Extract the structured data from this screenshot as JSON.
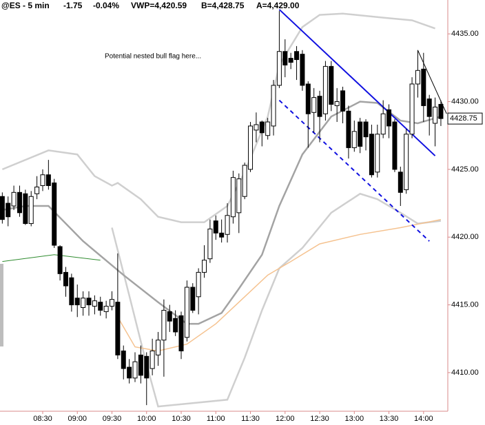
{
  "chart_data": {
    "type": "candlestick",
    "title": "@ES - 5 min",
    "change": "-1.75",
    "change_pct": "-0.04%",
    "change_color": "#e00000",
    "vwap": "VWP=4,420.59",
    "bid": "B=4,428.75",
    "ask": "A=4,429.00",
    "annotation": "Potential nested bull flag here...",
    "x": [
      "07:55",
      "08:00",
      "08:05",
      "08:10",
      "08:15",
      "08:20",
      "08:25",
      "08:30",
      "08:35",
      "08:40",
      "08:45",
      "08:50",
      "08:55",
      "09:00",
      "09:05",
      "09:10",
      "09:15",
      "09:20",
      "09:25",
      "09:30",
      "09:35",
      "09:40",
      "09:45",
      "09:50",
      "09:55",
      "10:00",
      "10:05",
      "10:10",
      "10:15",
      "10:20",
      "10:25",
      "10:30",
      "10:35",
      "10:40",
      "10:45",
      "10:50",
      "10:55",
      "11:00",
      "11:05",
      "11:10",
      "11:15",
      "11:20",
      "11:25",
      "11:30",
      "11:35",
      "11:40",
      "11:45",
      "11:50",
      "11:55",
      "12:00",
      "12:05",
      "12:10",
      "12:15",
      "12:20",
      "12:25",
      "12:30",
      "12:35",
      "12:40",
      "12:45",
      "12:50",
      "12:55",
      "13:00",
      "13:05",
      "13:10",
      "13:15",
      "13:20",
      "13:25",
      "13:30",
      "13:35",
      "13:40",
      "13:45",
      "13:50",
      "13:55",
      "14:00",
      "14:05",
      "14:10",
      "14:15"
    ],
    "open": [
      4423.0,
      4422.5,
      4422.3,
      4423.3,
      4423.2,
      4421.0,
      4423.2,
      4423.8,
      4424.6,
      4424.0,
      4419.3,
      4417.4,
      4417.0,
      4415.5,
      4414.8,
      4415.5,
      4414.9,
      4415.2,
      4414.5,
      4414.9,
      4415.2,
      4411.6,
      4410.4,
      4409.6,
      4411.3,
      4411.2,
      4410.3,
      4411.3,
      4412.4,
      4414.5,
      4414.0,
      4414.2,
      4412.6,
      4416.3,
      4415.6,
      4417.4,
      4418.4,
      4421.2,
      4420.3,
      4420.2,
      4421.5,
      4421.8,
      4423.0,
      4425.0,
      4427.9,
      4428.5,
      4427.5,
      4428.2,
      4431.2,
      4433.7,
      4433.2,
      4433.7,
      4433.5,
      4431.3,
      4429.2,
      4430.4,
      4429.1,
      4432.6,
      4429.7,
      4430.8,
      4429.3,
      4426.6,
      4428.5,
      4428.5,
      4427.6,
      4424.8,
      4427.6,
      4429.4,
      4428.5,
      4424.8,
      4423.5,
      4427.6,
      4431.3,
      4432.4,
      4430.2,
      4428.4,
      4429.8
    ],
    "high": [
      4423.3,
      4423.0,
      4423.8,
      4423.8,
      4423.5,
      4423.4,
      4424.5,
      4425.0,
      4425.7,
      4424.3,
      4419.4,
      4417.8,
      4417.3,
      4416.5,
      4416.0,
      4416.0,
      4415.7,
      4415.6,
      4415.3,
      4416.0,
      4418.8,
      4412.0,
      4411.0,
      4411.5,
      4412.0,
      4411.5,
      4412.5,
      4413.0,
      4415.4,
      4415.0,
      4414.6,
      4414.5,
      4416.8,
      4416.6,
      4417.7,
      4419.4,
      4421.3,
      4421.6,
      4421.3,
      4422.5,
      4424.9,
      4424.7,
      4425.5,
      4428.5,
      4429.2,
      4428.6,
      4428.8,
      4431.6,
      4436.7,
      4434.6,
      4433.6,
      4434.1,
      4433.8,
      4431.5,
      4431.0,
      4430.8,
      4433.0,
      4433.0,
      4431.0,
      4431.1,
      4429.7,
      4428.6,
      4428.8,
      4428.7,
      4428.3,
      4428.3,
      4430.1,
      4429.8,
      4428.7,
      4425.2,
      4428.0,
      4431.8,
      4433.8,
      4433.6,
      4430.5,
      4430.3,
      4430.1
    ],
    "low": [
      4421.0,
      4420.8,
      4422.0,
      4421.5,
      4420.9,
      4420.8,
      4422.8,
      4423.4,
      4423.5,
      4419.2,
      4416.8,
      4415.6,
      4414.5,
      4414.1,
      4414.2,
      4414.2,
      4414.3,
      4414.2,
      4414.0,
      4414.6,
      4411.0,
      4409.5,
      4409.2,
      4409.3,
      4409.2,
      4407.6,
      4409.8,
      4410.5,
      4409.7,
      4413.0,
      4412.7,
      4411.0,
      4412.3,
      4414.4,
      4414.3,
      4417.0,
      4418.1,
      4419.8,
      4419.6,
      4419.6,
      4421.0,
      4420.3,
      4422.8,
      4424.8,
      4427.0,
      4426.7,
      4427.2,
      4427.5,
      4431.0,
      4431.8,
      4432.4,
      4431.6,
      4430.8,
      4426.6,
      4427.7,
      4427.0,
      4428.6,
      4429.3,
      4428.5,
      4428.4,
      4425.8,
      4426.3,
      4426.2,
      4426.4,
      4424.4,
      4424.4,
      4427.3,
      4427.3,
      4424.8,
      4422.3,
      4423.2,
      4427.3,
      4430.3,
      4428.5,
      4427.5,
      4426.7,
      4428.2
    ],
    "close": [
      4421.3,
      4421.5,
      4423.3,
      4421.8,
      4421.0,
      4423.0,
      4423.7,
      4424.6,
      4423.8,
      4419.4,
      4417.3,
      4416.4,
      4415.0,
      4415.0,
      4415.5,
      4415.0,
      4415.3,
      4414.6,
      4414.9,
      4415.4,
      4411.3,
      4410.3,
      4409.6,
      4410.8,
      4409.8,
      4409.6,
      4411.6,
      4412.4,
      4414.6,
      4413.8,
      4413.0,
      4411.6,
      4416.3,
      4414.6,
      4417.4,
      4418.3,
      4420.6,
      4420.3,
      4420.0,
      4421.6,
      4424.4,
      4424.3,
      4425.3,
      4428.2,
      4428.3,
      4427.7,
      4428.5,
      4431.2,
      4433.7,
      4432.7,
      4432.9,
      4433.1,
      4431.2,
      4429.1,
      4430.3,
      4428.9,
      4432.6,
      4429.8,
      4430.0,
      4429.3,
      4426.6,
      4427.8,
      4426.7,
      4427.4,
      4424.6,
      4427.6,
      4429.1,
      4428.2,
      4425.0,
      4423.3,
      4427.6,
      4431.3,
      4432.3,
      4429.7,
      4428.9,
      4429.6,
      4428.75
    ],
    "up_color": "#ffffff",
    "down_color": "#000000",
    "lines": [
      {
        "color": "#cfcfcf",
        "width": 2.5,
        "dash": false,
        "x": [
          "07:55",
          "08:35",
          "09:00",
          "09:15",
          "09:30",
          "09:35",
          "09:55",
          "10:10",
          "10:30",
          "10:50",
          "11:10",
          "11:25",
          "11:45",
          "11:55",
          "12:15",
          "12:30",
          "12:50",
          "13:25",
          "13:50",
          "14:10"
        ],
        "values": [
          4425.0,
          4426.4,
          4426.1,
          4424.5,
          4423.8,
          4424.0,
          4422.8,
          4421.5,
          4421.1,
          4421.1,
          4422.3,
          4424.8,
          4428.9,
          4432.7,
          4435.5,
          4436.4,
          4436.5,
          4436.2,
          4436.0,
          4435.4
        ]
      },
      {
        "color": "#cfcfcf",
        "width": 2.5,
        "dash": false,
        "x": [
          "09:30",
          "09:45",
          "10:00",
          "10:10",
          "11:10",
          "11:25",
          "11:40",
          "11:55",
          "12:15",
          "12:40",
          "13:05",
          "13:20",
          "13:40",
          "13:55",
          "14:15"
        ],
        "values": [
          4420.7,
          4415.7,
          4410.6,
          4407.5,
          4408.0,
          4411.1,
          4414.6,
          4417.7,
          4419.2,
          4421.8,
          4423.2,
          4422.8,
          4421.8,
          4421.0,
          4421.2
        ]
      },
      {
        "color": "#a3a3a3",
        "width": 2.5,
        "dash": false,
        "x": [
          "07:55",
          "08:15",
          "08:35",
          "09:05",
          "09:40",
          "10:10",
          "10:35",
          "10:45",
          "11:05",
          "11:20",
          "11:40",
          "11:55",
          "12:15",
          "12:40",
          "13:05",
          "13:20",
          "13:40",
          "13:55",
          "14:15"
        ],
        "values": [
          4422.0,
          4422.3,
          4422.3,
          4419.7,
          4417.2,
          4415.2,
          4413.6,
          4413.6,
          4414.4,
          4416.2,
          4418.7,
          4422.3,
          4426.1,
          4428.9,
          4430.0,
          4429.9,
          4428.6,
          4428.4,
          4428.9
        ]
      },
      {
        "color": "#f5c28f",
        "width": 1.5,
        "dash": false,
        "x": [
          "09:35",
          "09:50",
          "10:10",
          "10:35",
          "11:00",
          "11:20",
          "11:45",
          "12:05",
          "12:30",
          "13:05",
          "13:40",
          "14:15"
        ],
        "values": [
          4414.1,
          4411.9,
          4411.6,
          4412.1,
          4413.6,
          4415.2,
          4417.2,
          4418.2,
          4419.5,
          4420.2,
          4420.7,
          4421.3
        ]
      },
      {
        "color": "#2e8b2e",
        "width": 1,
        "dash": false,
        "x": [
          "07:55",
          "08:40",
          "09:20"
        ],
        "values": [
          4418.2,
          4418.7,
          4418.3
        ]
      },
      {
        "color": "#1010e0",
        "width": 2,
        "dash": false,
        "x": [
          "11:55",
          "14:10"
        ],
        "values": [
          4436.8,
          4426.0
        ]
      },
      {
        "color": "#1010e0",
        "width": 2,
        "dash": true,
        "x": [
          "11:55",
          "14:05"
        ],
        "values": [
          4430.1,
          4419.7
        ]
      },
      {
        "color": "#000000",
        "width": 1,
        "dash": false,
        "x": [
          "13:55",
          "14:20"
        ],
        "values": [
          4433.8,
          4429.1
        ]
      }
    ],
    "last_price": {
      "value": 4428.75,
      "label": "4428.75"
    },
    "xlim": [
      "07:53",
      "14:21"
    ],
    "xticks": [
      "08:30",
      "09:00",
      "09:30",
      "10:00",
      "10:30",
      "11:00",
      "11:30",
      "12:00",
      "12:30",
      "13:00",
      "13:30",
      "14:00"
    ],
    "ylim": [
      4407.15,
      4437.5
    ],
    "yticks": [
      {
        "value": 4410,
        "label": "4410.00"
      },
      {
        "value": 4415,
        "label": "4415.00"
      },
      {
        "value": 4420,
        "label": "4420.00"
      },
      {
        "value": 4425,
        "label": "4425.00"
      },
      {
        "value": 4430,
        "label": "4430.00"
      },
      {
        "value": 4435,
        "label": "4435.00"
      }
    ],
    "axis_color": "#d98a8a"
  }
}
